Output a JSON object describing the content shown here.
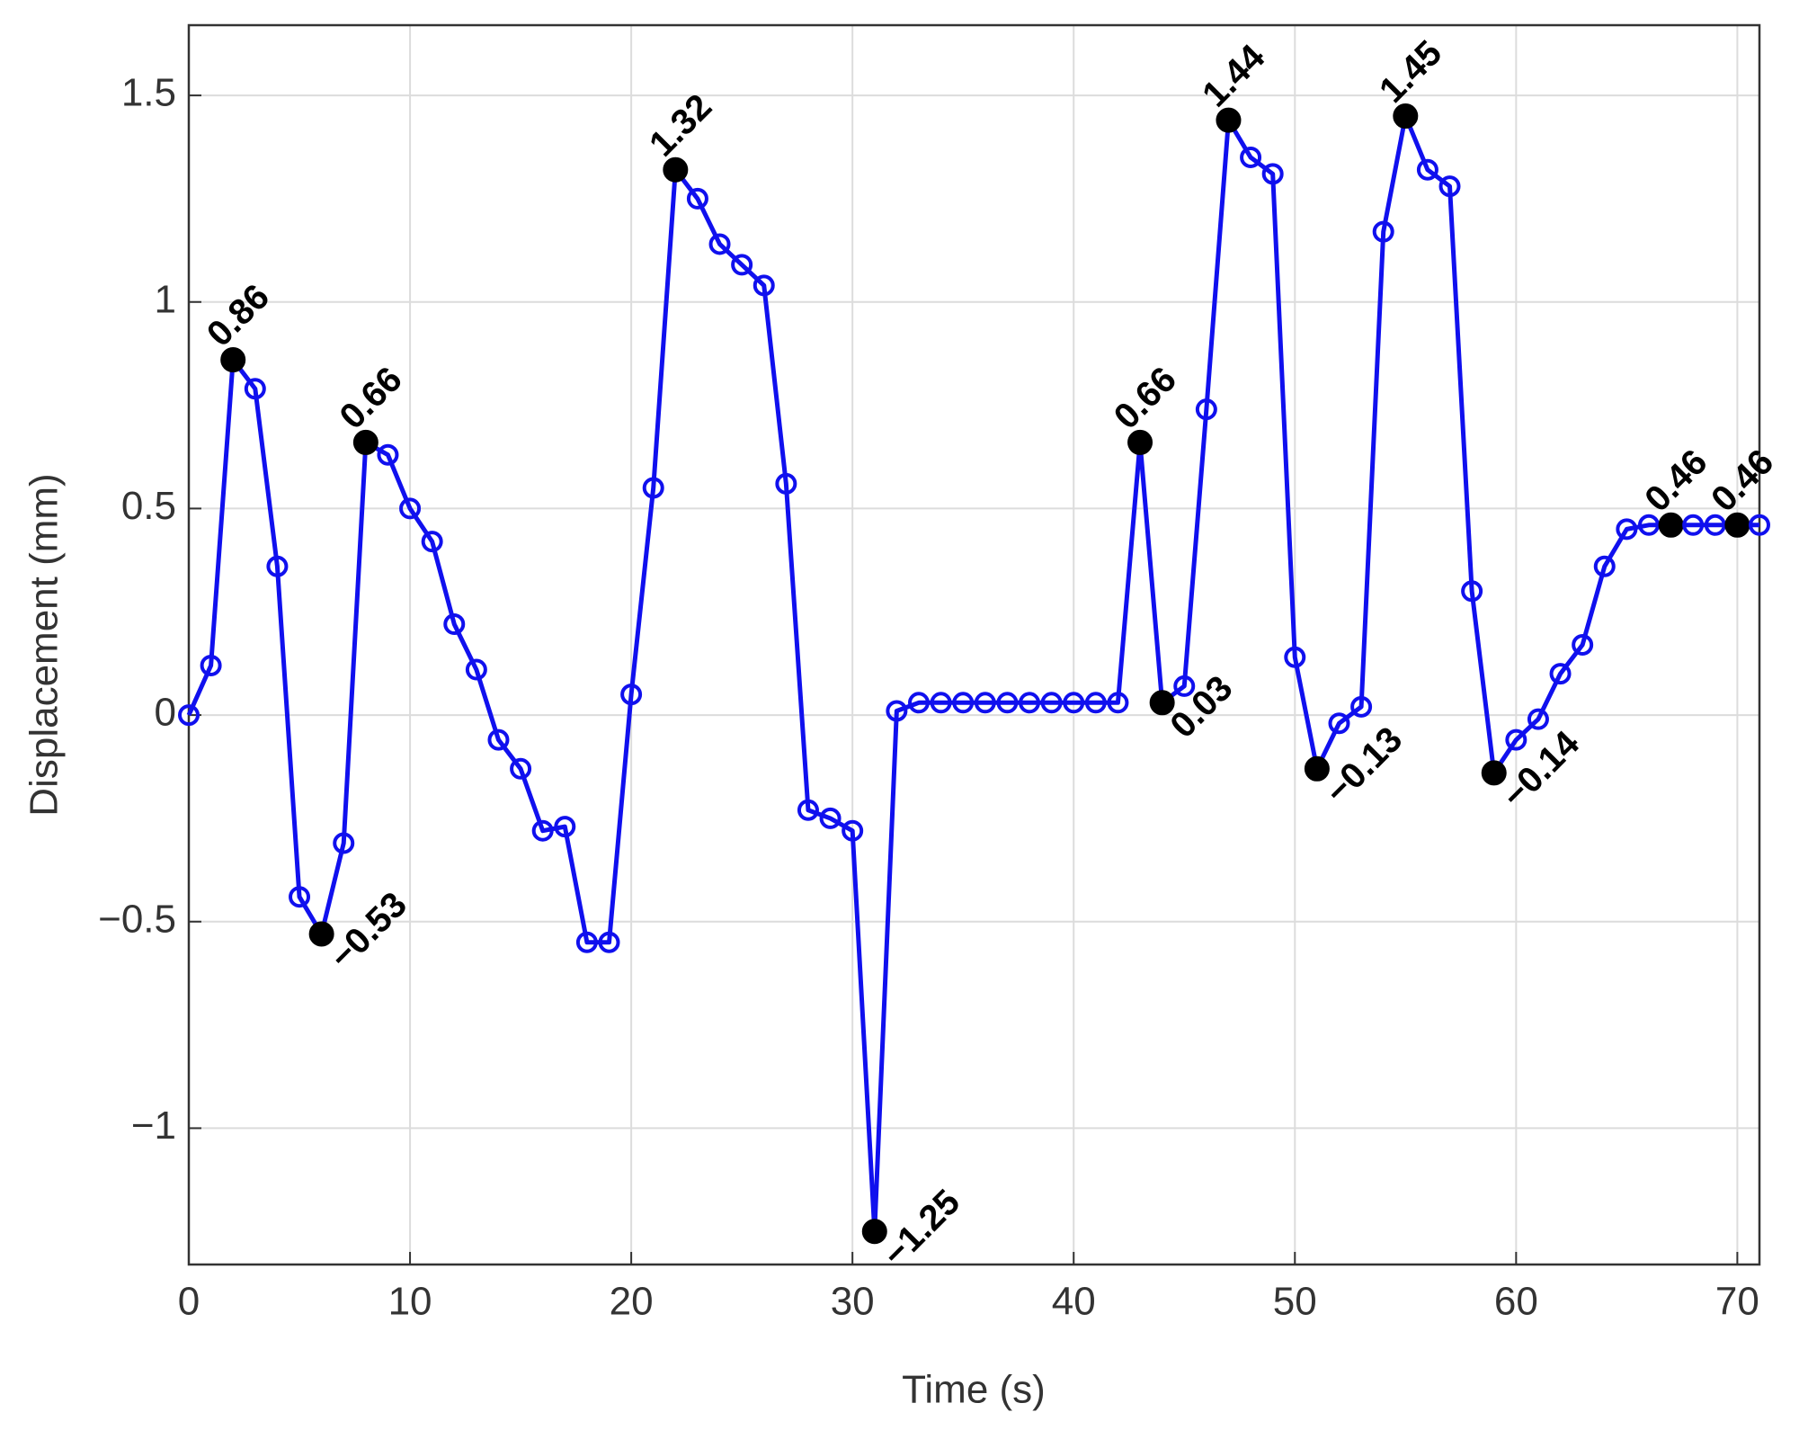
{
  "chart_data": {
    "type": "line",
    "xlabel": "Time (s)",
    "ylabel": "Displacement (mm)",
    "x": [
      0,
      1,
      2,
      3,
      4,
      5,
      6,
      7,
      8,
      9,
      10,
      11,
      12,
      13,
      14,
      15,
      16,
      17,
      18,
      19,
      20,
      21,
      22,
      23,
      24,
      25,
      26,
      27,
      28,
      29,
      30,
      31,
      32,
      33,
      34,
      35,
      36,
      37,
      38,
      39,
      40,
      41,
      42,
      43,
      44,
      45,
      46,
      47,
      48,
      49,
      50,
      51,
      52,
      53,
      54,
      55,
      56,
      57,
      58,
      59,
      60,
      61,
      62,
      63,
      64,
      65,
      66,
      67,
      68,
      69,
      70,
      71
    ],
    "series": [
      {
        "color": "#1010ee",
        "highlight_color": "#000000",
        "values": [
          0,
          0.12,
          0.86,
          0.79,
          0.36,
          -0.44,
          -0.53,
          -0.31,
          0.66,
          0.63,
          0.5,
          0.42,
          0.22,
          0.11,
          -0.06,
          -0.13,
          -0.28,
          -0.27,
          -0.55,
          -0.55,
          0.05,
          0.55,
          1.32,
          1.25,
          1.14,
          1.09,
          1.04,
          0.56,
          -0.23,
          -0.25,
          -0.28,
          -1.25,
          0.01,
          0.03,
          0.03,
          0.03,
          0.03,
          0.03,
          0.03,
          0.03,
          0.03,
          0.03,
          0.03,
          0.66,
          0.03,
          0.07,
          0.74,
          1.44,
          1.35,
          1.31,
          0.14,
          -0.13,
          -0.02,
          0.02,
          1.17,
          1.45,
          1.32,
          1.28,
          0.3,
          -0.14,
          -0.06,
          -0.01,
          0.1,
          0.17,
          0.36,
          0.45,
          0.46,
          0.46,
          0.46,
          0.46,
          0.46,
          0.46
        ],
        "value_labels": [
          null,
          null,
          "0.86",
          null,
          null,
          null,
          "−0.53",
          null,
          "0.66",
          null,
          null,
          null,
          null,
          null,
          null,
          null,
          null,
          null,
          null,
          null,
          null,
          null,
          "1.32",
          null,
          null,
          null,
          null,
          null,
          null,
          null,
          null,
          "−1.25",
          null,
          null,
          null,
          null,
          null,
          null,
          null,
          null,
          null,
          null,
          null,
          "0.66",
          "0.03",
          null,
          null,
          "1.44",
          null,
          null,
          null,
          "−0.13",
          null,
          null,
          null,
          "1.45",
          null,
          null,
          null,
          "−0.14",
          null,
          null,
          null,
          null,
          null,
          null,
          null,
          "0.46",
          null,
          null,
          "0.46",
          null
        ]
      }
    ],
    "xlim": [
      0,
      71
    ],
    "ylim": [
      -1.33,
      1.67
    ],
    "xticks": [
      0,
      10,
      20,
      30,
      40,
      50,
      60,
      70
    ],
    "yticks": [
      {
        "value": -1,
        "label": "−1"
      },
      {
        "value": -0.5,
        "label": "−0.5"
      },
      0,
      0.5,
      1,
      1.5
    ],
    "grid": true
  }
}
